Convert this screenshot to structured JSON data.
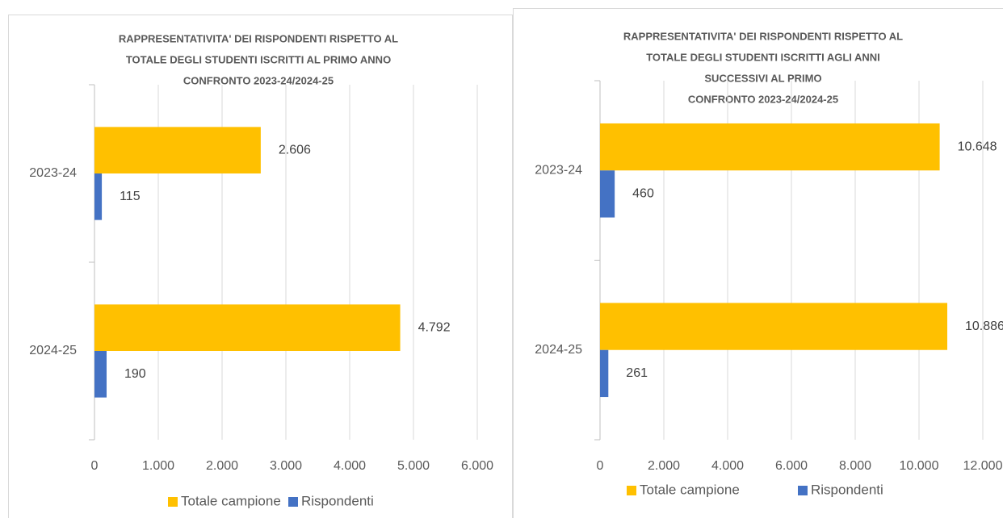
{
  "chart_data": [
    {
      "type": "bar",
      "orientation": "horizontal",
      "title": [
        "RAPPRESENTATIVITA' DEI RISPONDENTI  RISPETTO AL",
        "TOTALE DEGLI STUDENTI ISCRITTI AL PRIMO ANNO",
        "CONFRONTO 2023-24/2024-25"
      ],
      "categories": [
        "2023-24",
        "2024-25"
      ],
      "series": [
        {
          "name": "Totale campione",
          "color": "#FFC000",
          "values": [
            2606,
            4792
          ],
          "value_labels": [
            "2.606",
            "4.792"
          ]
        },
        {
          "name": "Rispondenti",
          "color": "#4472C4",
          "values": [
            115,
            190
          ]
        }
      ],
      "xlim": [
        0,
        6000
      ],
      "xticks": [
        0,
        {
          "value": 1000,
          "label": "1.000"
        },
        {
          "value": 2000,
          "label": "2.000"
        },
        {
          "value": 3000,
          "label": "3.000"
        },
        {
          "value": 4000,
          "label": "4.000"
        },
        {
          "value": 5000,
          "label": "5.000"
        },
        {
          "value": 6000,
          "label": "6.000"
        }
      ],
      "grid": true,
      "legend": "bottom"
    },
    {
      "type": "bar",
      "orientation": "horizontal",
      "title": [
        "RAPPRESENTATIVITA' DEI RISPONDENTI RISPETTO AL",
        "TOTALE DEGLI STUDENTI ISCRITTI AGLI ANNI",
        "SUCCESSIVI AL PRIMO",
        "CONFRONTO 2023-24/2024-25"
      ],
      "categories": [
        "2023-24",
        "2024-25"
      ],
      "series": [
        {
          "name": "Totale campione",
          "color": "#FFC000",
          "values": [
            10648,
            10886
          ],
          "value_labels": [
            "10.648",
            "10.886"
          ]
        },
        {
          "name": "Rispondenti",
          "color": "#4472C4",
          "values": [
            460,
            261
          ]
        }
      ],
      "xlim": [
        0,
        12000
      ],
      "xticks": [
        0,
        {
          "value": 2000,
          "label": "2.000"
        },
        {
          "value": 4000,
          "label": "4.000"
        },
        {
          "value": 6000,
          "label": "6.000"
        },
        {
          "value": 8000,
          "label": "8.000"
        },
        {
          "value": 10000,
          "label": "10.000"
        },
        {
          "value": 12000,
          "label": "12.000"
        }
      ],
      "grid": true,
      "legend": "bottom"
    }
  ]
}
